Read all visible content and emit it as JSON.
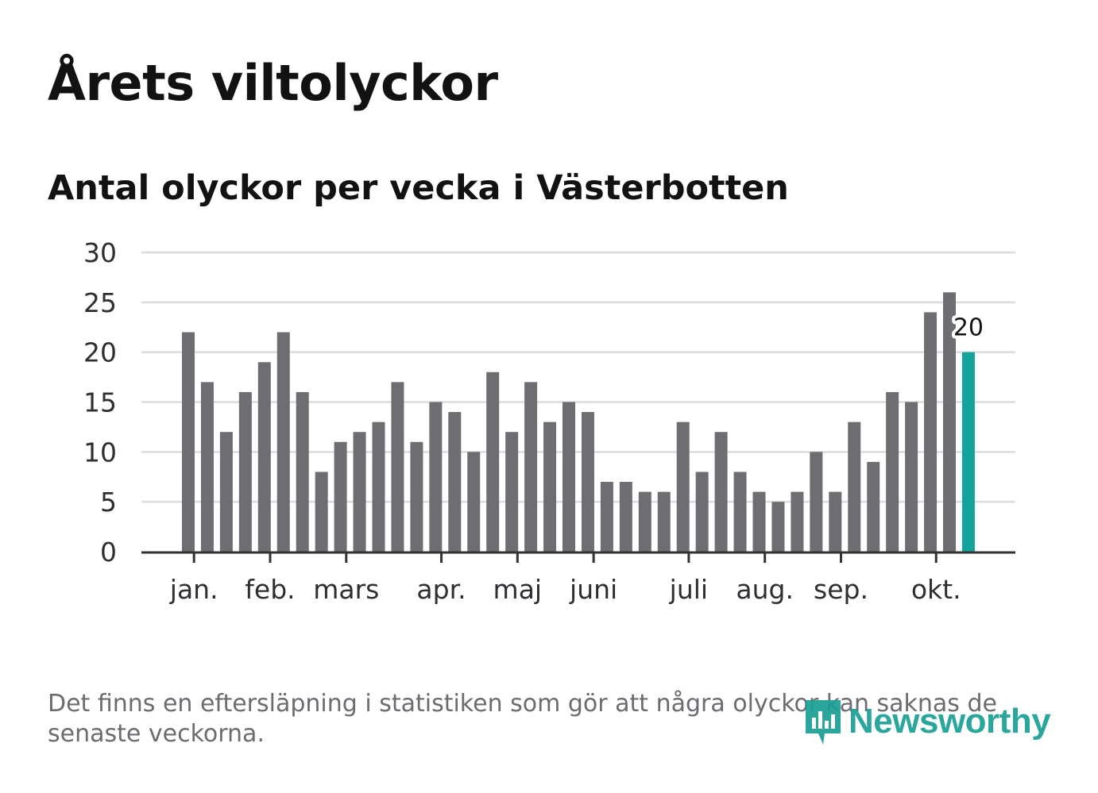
{
  "header": {
    "title": "Årets viltolyckor",
    "subtitle": "Antal olyckor per vecka i Västerbotten"
  },
  "footer": {
    "note": "Det finns en eftersläpning i statistiken som gör att några olyckor kan saknas de senaste veckorna.",
    "logo_text": "Newsworthy",
    "logo_icon": "newsworthy-chart-icon"
  },
  "colors": {
    "bar": "#6e6d72",
    "highlight": "#12a39a",
    "grid": "#dcdcdc",
    "axis": "#333333",
    "logo": "#1a9f95"
  },
  "chart_data": {
    "type": "bar",
    "title": "Antal olyckor per vecka i Västerbotten",
    "xlabel": "",
    "ylabel": "",
    "ylim": [
      0,
      30
    ],
    "yticks": [
      0,
      5,
      10,
      15,
      20,
      25,
      30
    ],
    "grid": true,
    "values": [
      22,
      17,
      12,
      16,
      19,
      22,
      16,
      8,
      11,
      12,
      13,
      17,
      11,
      15,
      14,
      10,
      18,
      12,
      17,
      13,
      15,
      14,
      7,
      7,
      6,
      6,
      13,
      8,
      12,
      8,
      6,
      5,
      6,
      10,
      6,
      13,
      9,
      16,
      15,
      24,
      26,
      20
    ],
    "highlight_index": 41,
    "highlight_label": "20",
    "month_ticks": [
      {
        "label": "jan.",
        "week_index": 0.3
      },
      {
        "label": "feb.",
        "week_index": 4.3
      },
      {
        "label": "mars",
        "week_index": 8.3
      },
      {
        "label": "apr.",
        "week_index": 13.3
      },
      {
        "label": "maj",
        "week_index": 17.3
      },
      {
        "label": "juni",
        "week_index": 21.3
      },
      {
        "label": "juli",
        "week_index": 26.3
      },
      {
        "label": "aug.",
        "week_index": 30.3
      },
      {
        "label": "sep.",
        "week_index": 34.3
      },
      {
        "label": "okt.",
        "week_index": 39.3
      }
    ]
  }
}
